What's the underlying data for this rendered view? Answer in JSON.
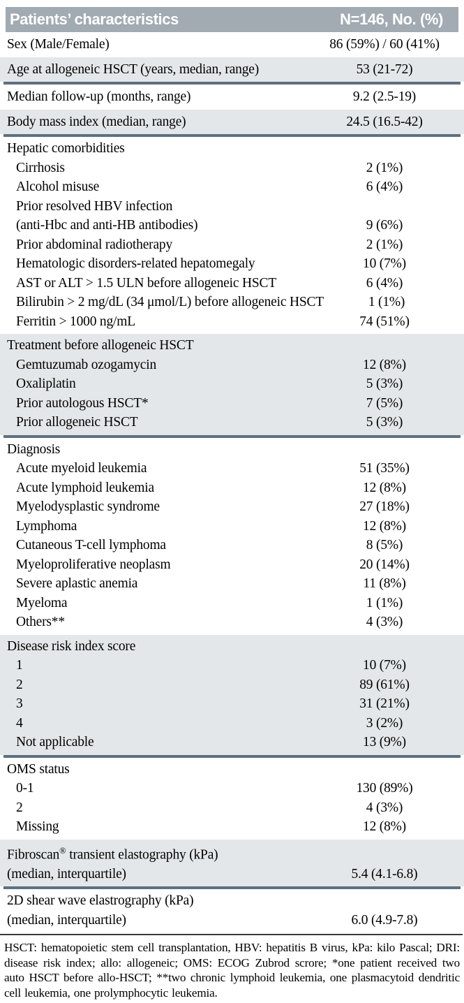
{
  "colors": {
    "header_bg": "#a2aab2",
    "shaded_bg": "#e4e7e9",
    "divider": "#5d7080",
    "header_text": "#ffffff",
    "body_text": "#000000"
  },
  "table": {
    "header": {
      "col1": "Patients’ characteristics",
      "col2": "N=146, No. (%)"
    },
    "sections": [
      {
        "shaded": false,
        "first": true,
        "single": true,
        "divider_after": false,
        "rows": [
          {
            "label": "Sex (Male/Female)",
            "value": "86 (59%) / 60 (41%)"
          }
        ]
      },
      {
        "shaded": true,
        "single": true,
        "divider_after": true,
        "rows": [
          {
            "label": "Age at allogeneic HSCT (years, median, range)",
            "value": "53 (21-72)"
          }
        ]
      },
      {
        "shaded": false,
        "single": true,
        "divider_after": false,
        "rows": [
          {
            "label": "Median follow-up (months, range)",
            "value": "9.2 (2.5-19)"
          }
        ]
      },
      {
        "shaded": true,
        "single": true,
        "divider_after": true,
        "rows": [
          {
            "label": "Body mass index (median, range)",
            "value": "24.5 (16.5-42)"
          }
        ]
      },
      {
        "shaded": false,
        "divider_after": false,
        "rows": [
          {
            "label": "Hepatic comorbidities",
            "value": ""
          },
          {
            "label": "Cirrhosis",
            "value": "2 (1%)",
            "indent": true
          },
          {
            "label": "Alcohol misuse",
            "value": "6 (4%)",
            "indent": true
          },
          {
            "label": "Prior resolved HBV infection",
            "value": "",
            "indent": true
          },
          {
            "label": "(anti-Hbc and anti-HB antibodies)",
            "value": "9 (6%)",
            "indent": true
          },
          {
            "label": "Prior abdominal radiotherapy",
            "value": "2 (1%)",
            "indent": true
          },
          {
            "label": "Hematologic disorders-related hepatomegaly",
            "value": "10 (7%)",
            "indent": true
          },
          {
            "label": "AST or ALT > 1.5 ULN before allogeneic HSCT",
            "value": "6 (4%)",
            "indent": true
          },
          {
            "label": "Bilirubin > 2 mg/dL (34 μmol/L) before allogeneic HSCT",
            "value": "1 (1%)",
            "indent": true
          },
          {
            "label": "Ferritin > 1000 ng/mL",
            "value": "74 (51%)",
            "indent": true
          }
        ]
      },
      {
        "shaded": true,
        "divider_after": true,
        "rows": [
          {
            "label": "Treatment before allogeneic HSCT",
            "value": ""
          },
          {
            "label": "Gemtuzumab ozogamycin",
            "value": "12 (8%)",
            "indent": true
          },
          {
            "label": "Oxaliplatin",
            "value": "5 (3%)",
            "indent": true
          },
          {
            "label": "Prior autologous HSCT*",
            "value": "7 (5%)",
            "indent": true
          },
          {
            "label": "Prior allogeneic HSCT",
            "value": "5 (3%)",
            "indent": true
          }
        ]
      },
      {
        "shaded": false,
        "divider_after": false,
        "rows": [
          {
            "label": "Diagnosis",
            "value": ""
          },
          {
            "label": "Acute myeloid leukemia",
            "value": "51 (35%)",
            "indent": true
          },
          {
            "label": "Acute lymphoid leukemia",
            "value": "12 (8%)",
            "indent": true
          },
          {
            "label": "Myelodysplastic syndrome",
            "value": "27 (18%)",
            "indent": true
          },
          {
            "label": "Lymphoma",
            "value": "12 (8%)",
            "indent": true
          },
          {
            "label": "Cutaneous T-cell lymphoma",
            "value": "8 (5%)",
            "indent": true
          },
          {
            "label": "Myeloproliferative neoplasm",
            "value": "20 (14%)",
            "indent": true
          },
          {
            "label": "Severe aplastic anemia",
            "value": "11 (8%)",
            "indent": true
          },
          {
            "label": "Myeloma",
            "value": "1 (1%)",
            "indent": true
          },
          {
            "label": "Others**",
            "value": "4 (3%)",
            "indent": true
          }
        ]
      },
      {
        "shaded": true,
        "divider_after": true,
        "rows": [
          {
            "label": "Disease risk index score",
            "value": ""
          },
          {
            "label": "1",
            "value": "10 (7%)",
            "indent": true
          },
          {
            "label": "2",
            "value": "89 (61%)",
            "indent": true
          },
          {
            "label": "3",
            "value": "31 (21%)",
            "indent": true
          },
          {
            "label": "4",
            "value": "3 (2%)",
            "indent": true
          },
          {
            "label": "Not applicable",
            "value": "13 (9%)",
            "indent": true
          }
        ]
      },
      {
        "shaded": false,
        "divider_after": false,
        "rows": [
          {
            "label": "OMS status",
            "value": ""
          },
          {
            "label": "0-1",
            "value": "130 (89%)",
            "indent": true
          },
          {
            "label": "2",
            "value": "4 (3%)",
            "indent": true
          },
          {
            "label": "Missing",
            "value": "12 (8%)",
            "indent": true
          }
        ]
      },
      {
        "shaded": true,
        "divider_after": true,
        "rows": [
          {
            "label_pre": "Fibroscan",
            "label_sup": "®",
            "label_post": " transient elastography (kPa)",
            "value": ""
          },
          {
            "label": "(median, interquartile)",
            "value": "5.4 (4.1-6.8)"
          }
        ]
      },
      {
        "shaded": false,
        "divider_after": false,
        "thin_divider_after": true,
        "rows": [
          {
            "label": "2D shear wave elastrography (kPa)",
            "value": ""
          },
          {
            "label": "(median, interquartile)",
            "value": "6.0 (4.9-7.8)"
          }
        ]
      }
    ],
    "footnote": "HSCT: hematopoietic stem cell transplantation, HBV: hepatitis B virus, kPa: kilo Pascal; DRI: disease risk index; allo: allogeneic; OMS: ECOG Zubrod scrore; *one patient received two auto HSCT before allo-HSCT; **two chronic lymphoid leukemia, one plasmacytoid dendritic cell leukemia, one prolymphocytic leukemia."
  }
}
